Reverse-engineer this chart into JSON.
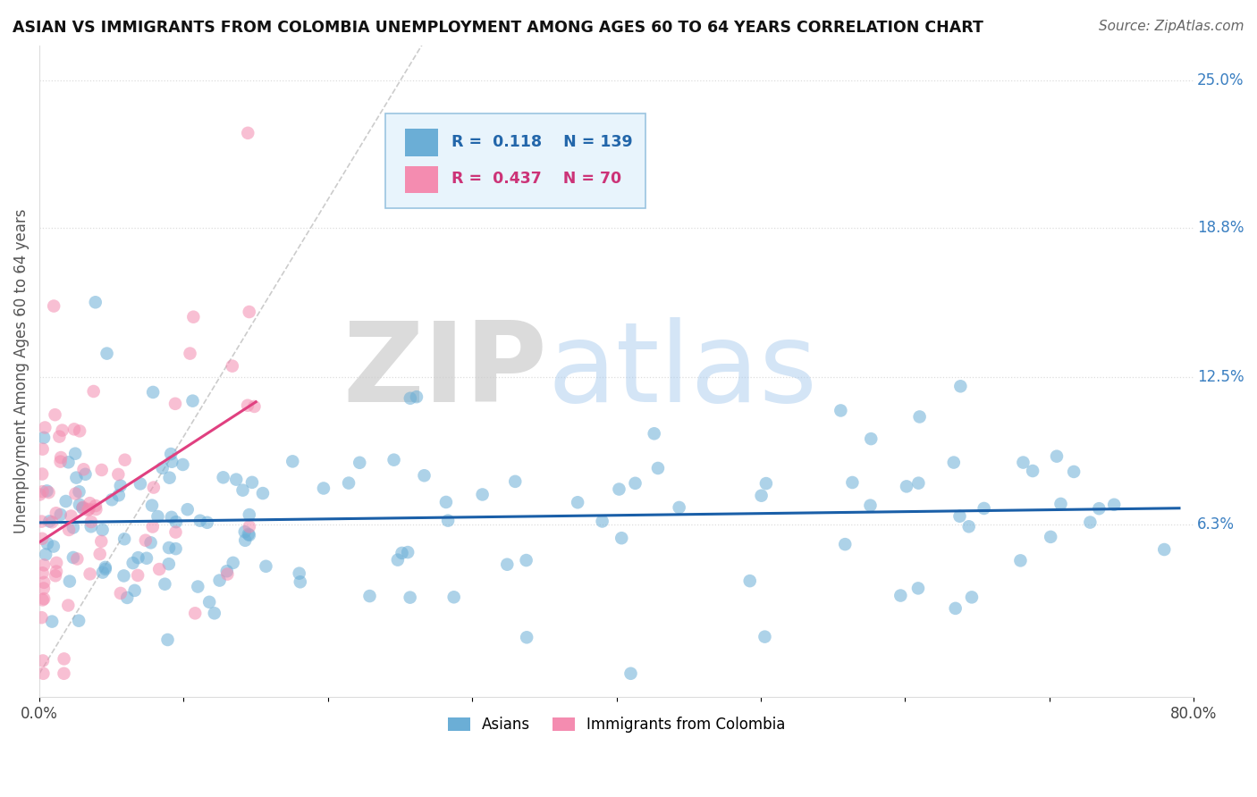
{
  "title": "ASIAN VS IMMIGRANTS FROM COLOMBIA UNEMPLOYMENT AMONG AGES 60 TO 64 YEARS CORRELATION CHART",
  "source": "Source: ZipAtlas.com",
  "ylabel": "Unemployment Among Ages 60 to 64 years",
  "xlim": [
    0.0,
    0.8
  ],
  "ylim": [
    -0.01,
    0.265
  ],
  "xticks": [
    0.0,
    0.1,
    0.2,
    0.3,
    0.4,
    0.5,
    0.6,
    0.7,
    0.8
  ],
  "xticklabels": [
    "0.0%",
    "",
    "",
    "",
    "",
    "",
    "",
    "",
    "80.0%"
  ],
  "ytick_right_labels": [
    "6.3%",
    "12.5%",
    "18.8%",
    "25.0%"
  ],
  "ytick_right_values": [
    0.063,
    0.125,
    0.188,
    0.25
  ],
  "asian_color": "#6baed6",
  "colombia_color": "#f48cb0",
  "asian_R": 0.118,
  "asian_N": 139,
  "colombia_R": 0.437,
  "colombia_N": 70,
  "trend_line_blue": "#1a5fa8",
  "trend_line_pink": "#e04080",
  "watermark_zip": "ZIP",
  "watermark_atlas": "atlas",
  "diag_line_color": "#cccccc"
}
